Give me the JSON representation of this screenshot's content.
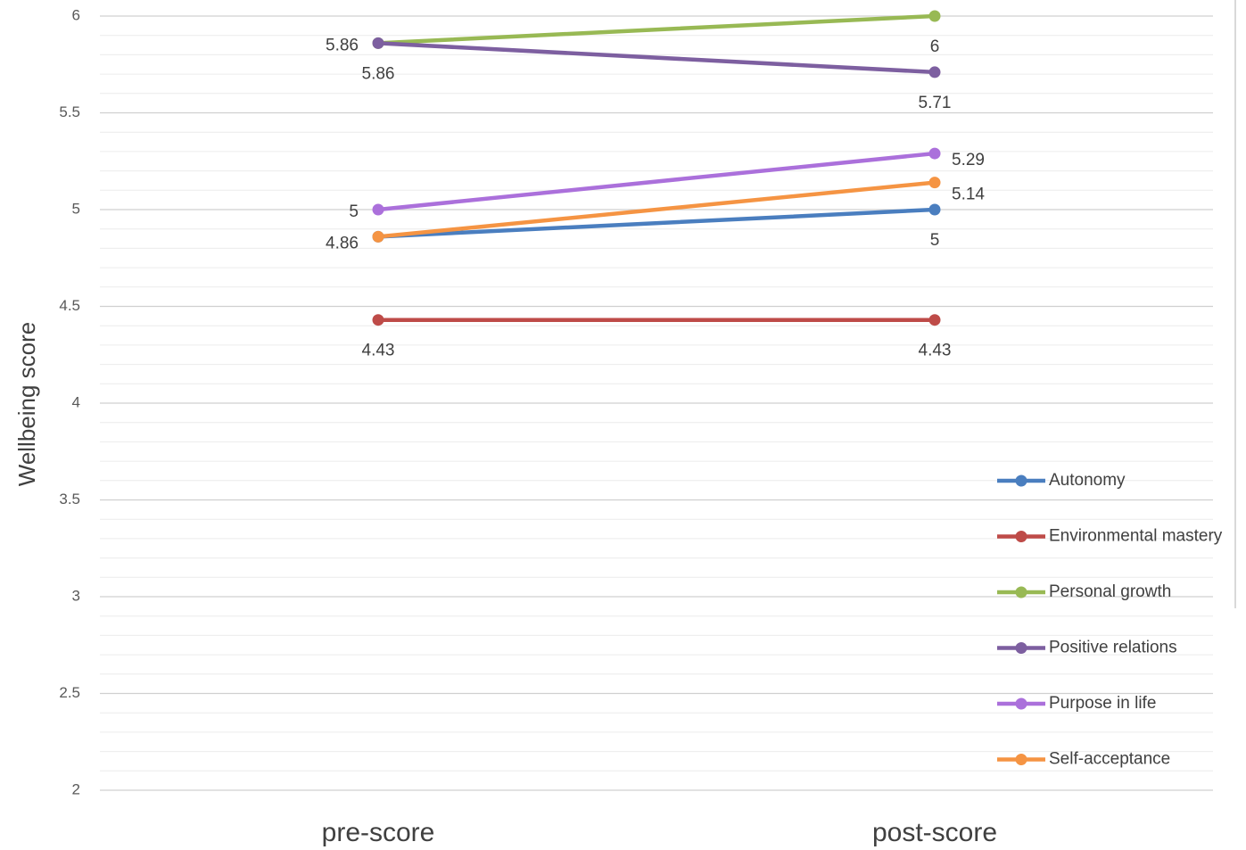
{
  "chart_data": {
    "type": "line",
    "y_label": "Wellbeing score",
    "categories": [
      "pre-score",
      "post-score"
    ],
    "series": [
      {
        "name": "Autonomy",
        "color": "#4a7ebf",
        "values": [
          4.86,
          5
        ]
      },
      {
        "name": "Environmental mastery",
        "color": "#be4b48",
        "values": [
          4.43,
          4.43
        ]
      },
      {
        "name": "Personal growth",
        "color": "#98b954",
        "values": [
          5.86,
          6
        ]
      },
      {
        "name": "Positive relations",
        "color": "#7d5fa0",
        "values": [
          5.86,
          5.71
        ]
      },
      {
        "name": "Purpose in life",
        "color": "#ab70db",
        "values": [
          5,
          5.29
        ]
      },
      {
        "name": "Self-acceptance",
        "color": "#f59443",
        "values": [
          4.86,
          5.14
        ]
      }
    ],
    "ylim": [
      2,
      6
    ],
    "yticks": [
      2,
      2.5,
      3,
      3.5,
      4,
      4.5,
      5,
      5.5,
      6
    ],
    "yminorticks": [
      2.1,
      2.2,
      2.3,
      2.4,
      2.6,
      2.7,
      2.8,
      2.9,
      3.1,
      3.2,
      3.3,
      3.4,
      3.6,
      3.7,
      3.8,
      3.9,
      4.1,
      4.2,
      4.3,
      4.4,
      4.6,
      4.7,
      4.8,
      4.9,
      5.1,
      5.2,
      5.3,
      5.4,
      5.6,
      5.7,
      5.8,
      5.9
    ],
    "grid": true,
    "legend": "right"
  }
}
